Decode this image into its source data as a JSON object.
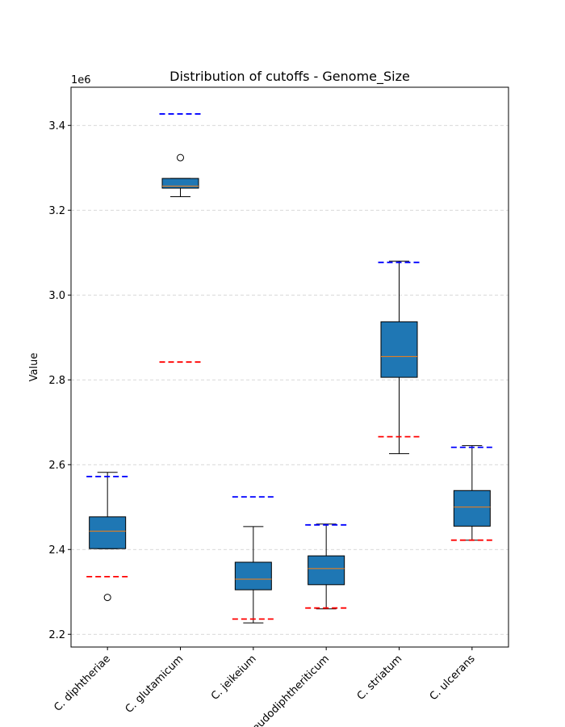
{
  "chart_data": {
    "type": "box",
    "title": "Distribution of cutoffs - Genome_Size",
    "xlabel": "",
    "ylabel": "Value",
    "y_offset_label": "1e6",
    "y_scale": 1000000,
    "ylim": [
      2170000,
      3490000
    ],
    "yticks": [
      2200000,
      2400000,
      2600000,
      2800000,
      3000000,
      3200000,
      3400000
    ],
    "ytick_labels": [
      "2.2",
      "2.4",
      "2.6",
      "2.8",
      "3.0",
      "3.2",
      "3.4"
    ],
    "grid": "y-dashed",
    "categories": [
      "C. diphtheriae",
      "C. glutamicum",
      "C. jeikeium",
      "C. pseudodiphtheriticum",
      "C. striatum",
      "C. ulcerans"
    ],
    "boxes": [
      {
        "q1": 2402000,
        "median": 2443000,
        "q3": 2477000,
        "whisker_low": 2402000,
        "whisker_high": 2582000,
        "outliers": [
          2287000
        ]
      },
      {
        "q1": 3252000,
        "median": 3257000,
        "q3": 3275000,
        "whisker_low": 3232000,
        "whisker_high": 3275000,
        "outliers": [
          3324000
        ]
      },
      {
        "q1": 2305000,
        "median": 2330000,
        "q3": 2370000,
        "whisker_low": 2227000,
        "whisker_high": 2454000,
        "outliers": []
      },
      {
        "q1": 2317000,
        "median": 2355000,
        "q3": 2385000,
        "whisker_low": 2260000,
        "whisker_high": 2460000,
        "outliers": []
      },
      {
        "q1": 2806000,
        "median": 2855000,
        "q3": 2937000,
        "whisker_low": 2626000,
        "whisker_high": 3080000,
        "outliers": []
      },
      {
        "q1": 2455000,
        "median": 2500000,
        "q3": 2539000,
        "whisker_low": 2422000,
        "whisker_high": 2645000,
        "outliers": []
      }
    ],
    "upper_cutoffs": [
      2572000,
      3427000,
      2524000,
      2458000,
      3077000,
      2641000
    ],
    "lower_cutoffs": [
      2336000,
      2842000,
      2236000,
      2262000,
      2666000,
      2422000
    ],
    "colors": {
      "box_fill": "#1f77b4",
      "median": "#ff7f0e",
      "upper_cutoff": "#0000ff",
      "lower_cutoff": "#ff0000",
      "grid": "#cccccc"
    }
  }
}
